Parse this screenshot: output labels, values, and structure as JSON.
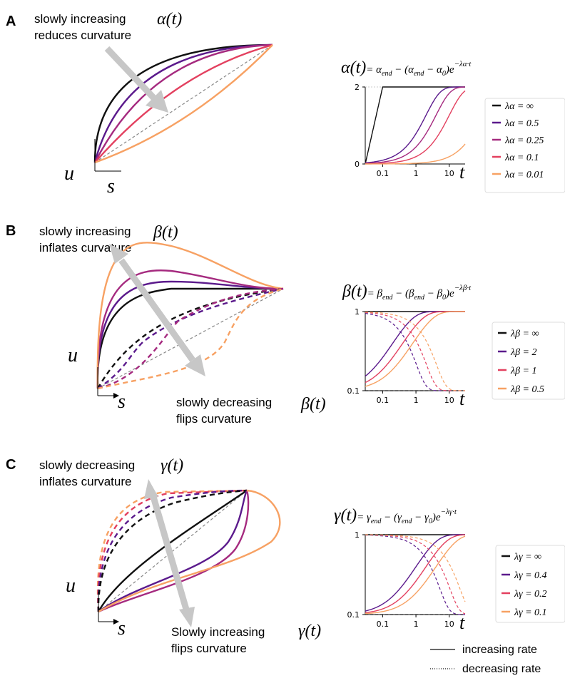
{
  "colors": {
    "black": "#111111",
    "purple": "#5b1a8c",
    "magenta": "#a52a7f",
    "red": "#e3405f",
    "orange": "#f7a163",
    "arrow": "#c7c7c7",
    "ref": "#888888"
  },
  "panels": [
    {
      "letter": "A",
      "ann1_line1": "slowly increasing",
      "ann1_sym": "α(t)",
      "ann1_line2": "reduces curvature",
      "ylabel": "u",
      "xlabel": "s",
      "formula_lhs": "α(t)",
      "formula_rhs": "= α",
      "formula_sub1": "end",
      "formula_mid": " − (α",
      "formula_sub2": "end",
      "formula_mid2": " − α",
      "formula_sub3": "0",
      "formula_end": ")e",
      "formula_exp": "−λα·t",
      "legend": [
        "λα = ∞",
        "λα = 0.5",
        "λα = 0.25",
        "λα = 0.1",
        "λα = 0.01"
      ],
      "tlabel": "t"
    },
    {
      "letter": "B",
      "ann1_line1": "slowly increasing",
      "ann1_sym": "β(t)",
      "ann1_line2": "inflates curvature",
      "ann2_line1": "slowly decreasing",
      "ann2_sym": "β(t)",
      "ann2_line2": "flips curvature",
      "ylabel": "u",
      "xlabel": "s",
      "formula_lhs": "β(t)",
      "formula_rhs": "= β",
      "formula_sub1": "end",
      "formula_mid": " − (β",
      "formula_sub2": "end",
      "formula_mid2": " − β",
      "formula_sub3": "0",
      "formula_end": ")e",
      "formula_exp": "−λβ·t",
      "legend": [
        "λβ = ∞",
        "λβ = 2",
        "λβ = 1",
        "λβ = 0.5"
      ],
      "tlabel": "t"
    },
    {
      "letter": "C",
      "ann1_line1": "slowly decreasing",
      "ann1_sym": "γ(t)",
      "ann1_line2": "inflates curvature",
      "ann2_line1": "Slowly increasing",
      "ann2_sym": "γ(t)",
      "ann2_line2": "flips curvature",
      "ylabel": "u",
      "xlabel": "s",
      "formula_lhs": "γ(t)",
      "formula_rhs": "= γ",
      "formula_sub1": "end",
      "formula_mid": " − (γ",
      "formula_sub2": "end",
      "formula_mid2": " − γ",
      "formula_sub3": "0",
      "formula_end": ")e",
      "formula_exp": "−λγ·t",
      "legend": [
        "λγ = ∞",
        "λγ = 0.4",
        "λγ = 0.2",
        "λγ = 0.1"
      ],
      "tlabel": "t"
    }
  ],
  "footer": {
    "solid": "increasing rate",
    "dotted": "decreasing rate"
  },
  "chart_data": [
    {
      "type": "line",
      "panel": "A",
      "xscale": "log",
      "xlim": [
        0.03,
        30
      ],
      "ylim": [
        0,
        2
      ],
      "xticks": [
        "0.1",
        "1",
        "10"
      ],
      "yticks": [
        "0",
        "2"
      ],
      "series": [
        {
          "name": "λα = ∞",
          "lambda": null,
          "direction": "increasing"
        },
        {
          "name": "λα = 0.5",
          "lambda": 0.5,
          "direction": "increasing"
        },
        {
          "name": "λα = 0.25",
          "lambda": 0.25,
          "direction": "increasing"
        },
        {
          "name": "λα = 0.1",
          "lambda": 0.1,
          "direction": "increasing"
        },
        {
          "name": "λα = 0.01",
          "lambda": 0.01,
          "direction": "increasing"
        }
      ]
    },
    {
      "type": "line",
      "panel": "B",
      "xscale": "log",
      "xlim": [
        0.03,
        30
      ],
      "ylim": [
        0.1,
        1
      ],
      "xticks": [
        "0.1",
        "1",
        "10"
      ],
      "yticks": [
        "0.1",
        "1"
      ],
      "series": [
        {
          "name": "λβ = ∞",
          "lambda": null,
          "direction": "both"
        },
        {
          "name": "λβ = 2",
          "lambda": 2,
          "direction": "both"
        },
        {
          "name": "λβ = 1",
          "lambda": 1,
          "direction": "both"
        },
        {
          "name": "λβ = 0.5",
          "lambda": 0.5,
          "direction": "both"
        }
      ]
    },
    {
      "type": "line",
      "panel": "C",
      "xscale": "log",
      "xlim": [
        0.03,
        30
      ],
      "ylim": [
        0.1,
        1
      ],
      "xticks": [
        "0.1",
        "1",
        "10"
      ],
      "yticks": [
        "0.1",
        "1"
      ],
      "series": [
        {
          "name": "λγ = ∞",
          "lambda": null,
          "direction": "both"
        },
        {
          "name": "λγ = 0.4",
          "lambda": 0.4,
          "direction": "both"
        },
        {
          "name": "λγ = 0.2",
          "lambda": 0.2,
          "direction": "both"
        },
        {
          "name": "λγ = 0.1",
          "lambda": 0.1,
          "direction": "both"
        }
      ]
    }
  ]
}
